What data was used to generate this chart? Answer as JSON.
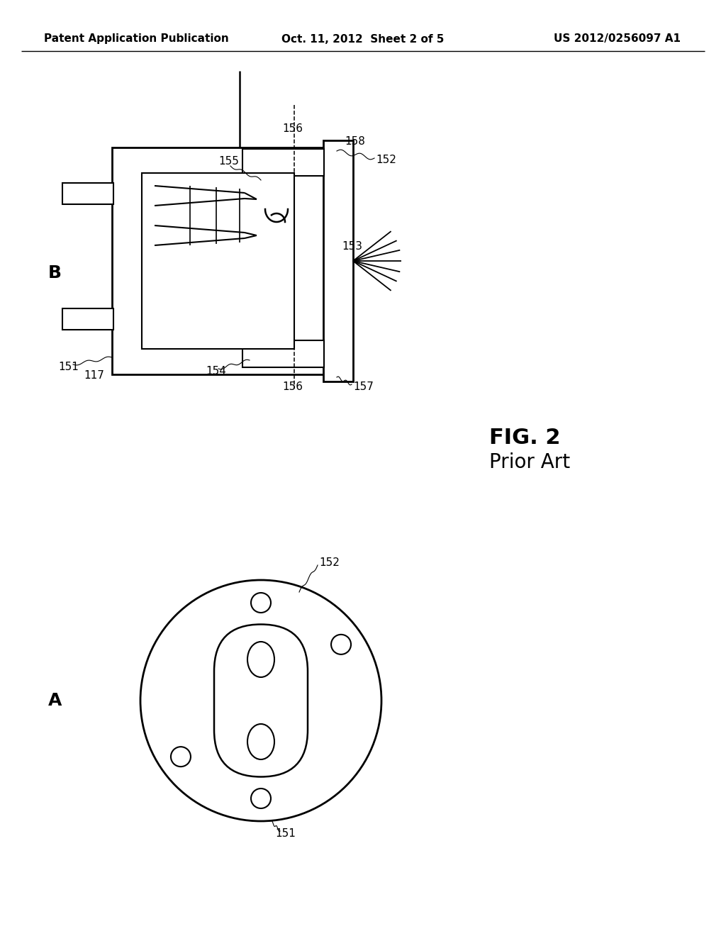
{
  "bg_color": "#ffffff",
  "header_left": "Patent Application Publication",
  "header_mid": "Oct. 11, 2012  Sheet 2 of 5",
  "header_right": "US 2012/0256097 A1",
  "fig_label": "FIG. 2",
  "fig_sublabel": "Prior Art",
  "label_A": "A",
  "label_B": "B"
}
